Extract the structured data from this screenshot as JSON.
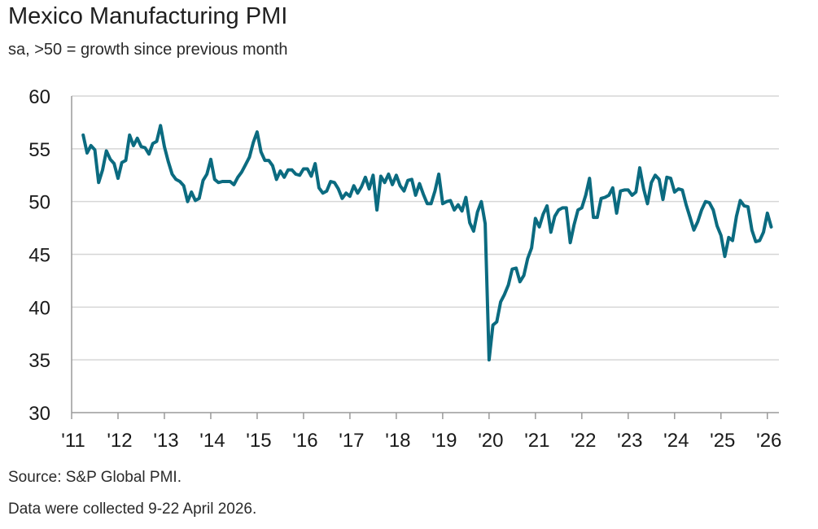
{
  "header": {
    "title": "Mexico Manufacturing PMI",
    "subtitle": "sa, >50 = growth since previous month"
  },
  "footer": {
    "source": "Source: S&P Global PMI.",
    "note": "Data were collected 9-22 April 2026."
  },
  "colors": {
    "line": "#0b6b80",
    "grid": "#d6d6d6",
    "axis": "#9a9a9a"
  },
  "chart_data": {
    "type": "line",
    "title": "Mexico Manufacturing PMI",
    "subtitle": "sa, >50 = growth since previous month",
    "xlabel": "",
    "ylabel": "",
    "ylim": [
      30,
      60
    ],
    "yticks": [
      "60",
      "55",
      "50",
      "45",
      "40",
      "35",
      "30"
    ],
    "xticks": [
      "'11",
      "'12",
      "'13",
      "'14",
      "'15",
      "'16",
      "'17",
      "'18",
      "'19",
      "'20",
      "'21",
      "'22",
      "'23",
      "'24",
      "'25",
      "'26"
    ],
    "x_range": [
      "2011-01",
      "2026-04"
    ],
    "grid": true,
    "legend": "none",
    "series": [
      {
        "x_start": "2011-04",
        "frequency": "monthly",
        "values": [
          56.3,
          54.6,
          55.3,
          54.9,
          51.8,
          53.0,
          54.8,
          54.0,
          53.6,
          52.2,
          53.7,
          53.9,
          56.3,
          55.3,
          56.0,
          55.2,
          55.1,
          54.5,
          55.5,
          55.7,
          57.2,
          55.2,
          53.8,
          52.6,
          52.1,
          51.9,
          51.5,
          50.0,
          50.9,
          50.1,
          50.3,
          52.0,
          52.6,
          54.0,
          52.1,
          51.8,
          51.9,
          51.9,
          51.9,
          51.6,
          52.3,
          52.8,
          53.5,
          54.2,
          55.6,
          56.6,
          54.7,
          53.9,
          53.9,
          53.4,
          52.1,
          52.9,
          52.3,
          53.0,
          53.0,
          52.6,
          52.5,
          53.1,
          53.1,
          52.4,
          53.6,
          51.3,
          50.8,
          51.0,
          51.9,
          51.8,
          51.2,
          50.3,
          50.8,
          50.5,
          51.5,
          50.8,
          51.4,
          52.3,
          51.2,
          52.5,
          49.2,
          52.4,
          51.8,
          52.6,
          51.6,
          52.5,
          51.5,
          51.0,
          52.0,
          52.1,
          50.6,
          51.7,
          50.7,
          49.8,
          49.8,
          51.0,
          52.6,
          49.8,
          50.0,
          50.1,
          49.2,
          49.7,
          49.1,
          50.4,
          48.0,
          47.2,
          49.0,
          50.0,
          47.9,
          35.0,
          38.3,
          38.6,
          40.5,
          41.2,
          42.1,
          43.6,
          43.7,
          42.4,
          43.0,
          44.6,
          45.6,
          48.4,
          47.6,
          48.8,
          49.6,
          47.1,
          48.6,
          49.2,
          49.4,
          49.4,
          46.1,
          47.8,
          49.2,
          49.4,
          50.6,
          52.2,
          48.5,
          48.5,
          50.3,
          50.4,
          50.6,
          51.3,
          48.9,
          51.0,
          51.1,
          51.1,
          50.6,
          50.9,
          53.2,
          51.2,
          49.8,
          51.8,
          52.5,
          52.1,
          50.2,
          52.3,
          52.2,
          50.9,
          51.2,
          51.1,
          49.7,
          48.5,
          47.3,
          48.1,
          49.2,
          50.0,
          49.9,
          49.2,
          47.7,
          46.8,
          44.8,
          46.6,
          46.3,
          48.6,
          50.1,
          49.6,
          49.5,
          47.3,
          46.2,
          46.3,
          47.1,
          48.9,
          47.6
        ]
      }
    ]
  }
}
